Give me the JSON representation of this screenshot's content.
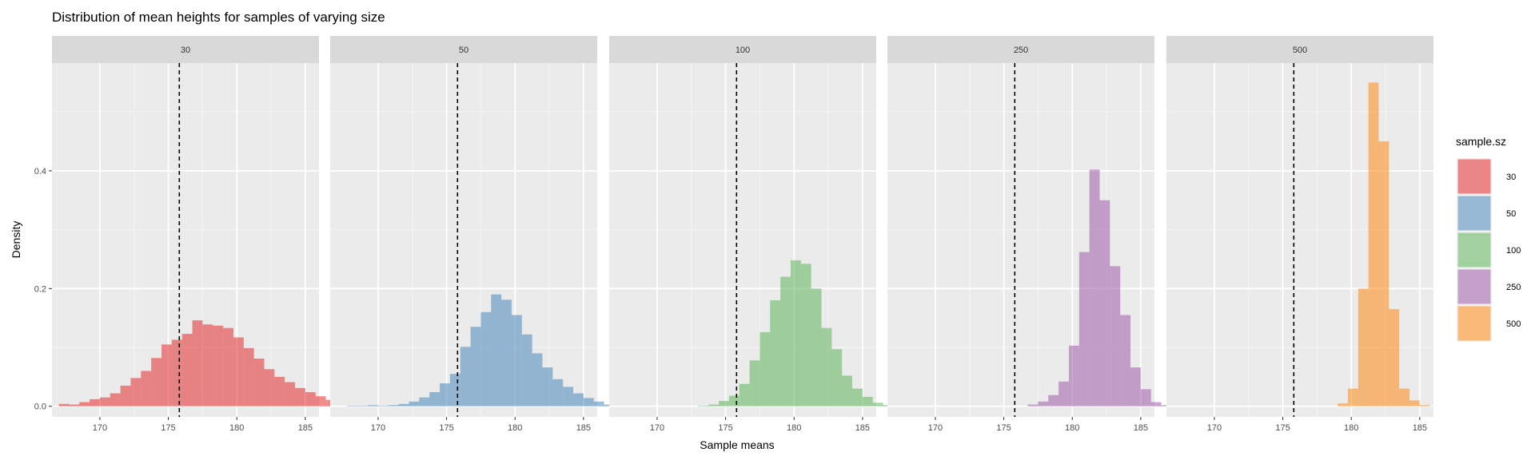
{
  "chart_data": {
    "type": "bar",
    "title": "Distribution of mean heights for samples of varying size",
    "xlabel": "Sample means",
    "ylabel": "Density",
    "xlim": [
      166.5,
      186
    ],
    "ylim": [
      -0.018,
      0.583
    ],
    "xticks": [
      170,
      175,
      180,
      185
    ],
    "yticks": [
      0.0,
      0.2,
      0.4
    ],
    "ytick_labels": [
      "0.0",
      "0.2",
      "0.4"
    ],
    "bin_width": 0.75,
    "bin_start": 167.0,
    "reference_line_x": 175.8,
    "grid": true,
    "legend": {
      "title": "sample.sz",
      "placement": "right"
    },
    "series": [
      {
        "name": "30",
        "color": "#E41A1C",
        "values": [
          0.004,
          0.003,
          0.007,
          0.012,
          0.015,
          0.022,
          0.035,
          0.048,
          0.06,
          0.082,
          0.105,
          0.113,
          0.123,
          0.146,
          0.139,
          0.137,
          0.133,
          0.117,
          0.099,
          0.081,
          0.063,
          0.05,
          0.041,
          0.031,
          0.024,
          0.017,
          0.011,
          0.007,
          0.004,
          0.002,
          0.002,
          0.001
        ]
      },
      {
        "name": "50",
        "color": "#377EB8",
        "values": [
          0,
          0.001,
          0.001,
          0.002,
          0.001,
          0.002,
          0.004,
          0.008,
          0.015,
          0.024,
          0.039,
          0.055,
          0.101,
          0.135,
          0.16,
          0.19,
          0.181,
          0.155,
          0.122,
          0.09,
          0.066,
          0.046,
          0.033,
          0.022,
          0.014,
          0.008,
          0.003,
          0.002,
          0.001,
          0,
          0,
          0
        ]
      },
      {
        "name": "100",
        "color": "#4DAF4A",
        "values": [
          0,
          0,
          0,
          0,
          0,
          0,
          0,
          0,
          0.001,
          0.003,
          0.009,
          0.018,
          0.038,
          0.078,
          0.126,
          0.18,
          0.22,
          0.248,
          0.242,
          0.2,
          0.133,
          0.097,
          0.052,
          0.03,
          0.016,
          0.006,
          0.002,
          0,
          0,
          0,
          0,
          0
        ]
      },
      {
        "name": "250",
        "color": "#984EA3",
        "values": [
          0,
          0,
          0,
          0,
          0,
          0,
          0,
          0,
          0,
          0,
          0,
          0,
          0,
          0.003,
          0.008,
          0.019,
          0.042,
          0.103,
          0.262,
          0.402,
          0.35,
          0.238,
          0.155,
          0.066,
          0.029,
          0.007,
          0.002,
          0,
          0,
          0,
          0,
          0
        ]
      },
      {
        "name": "500",
        "color": "#FF7F00",
        "values": [
          0,
          0,
          0,
          0,
          0,
          0,
          0,
          0,
          0,
          0,
          0,
          0,
          0,
          0,
          0,
          0,
          0.005,
          0.03,
          0.2,
          0.55,
          0.45,
          0.165,
          0.03,
          0.01,
          0.002,
          0,
          0,
          0,
          0,
          0,
          0,
          0
        ]
      }
    ]
  }
}
